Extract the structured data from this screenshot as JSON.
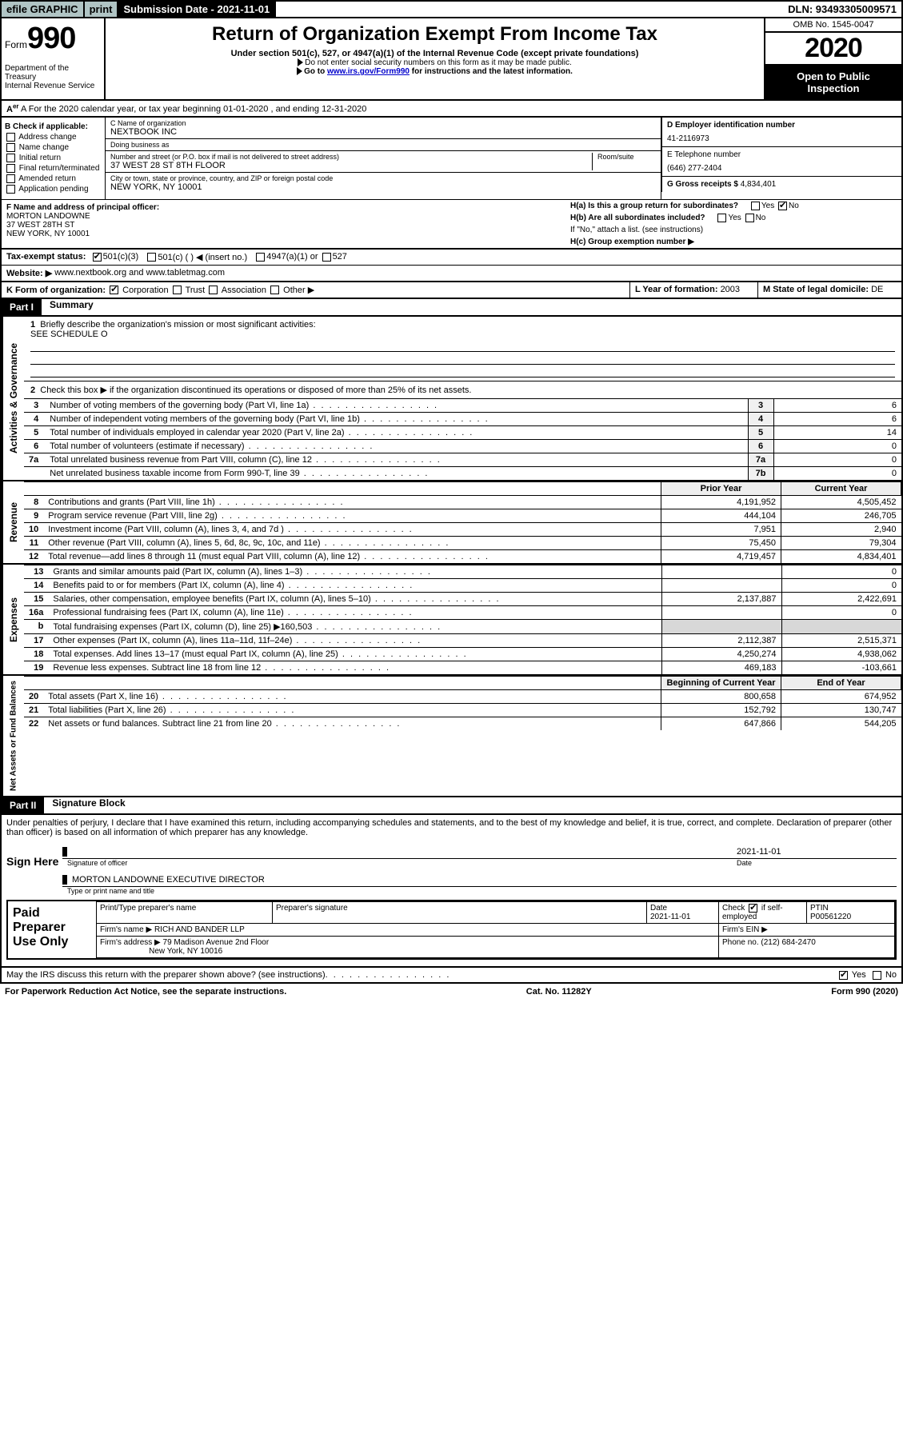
{
  "topbar": {
    "efile": "efile GRAPHIC",
    "print": "print",
    "subdate_lbl": "Submission Date - 2021-11-01",
    "dln": "DLN: 93493305009571"
  },
  "header": {
    "form_small": "Form",
    "form_big": "990",
    "dept": "Department of the Treasury",
    "irs": "Internal Revenue Service",
    "title": "Return of Organization Exempt From Income Tax",
    "sub1": "Under section 501(c), 527, or 4947(a)(1) of the Internal Revenue Code (except private foundations)",
    "sub2": "Do not enter social security numbers on this form as it may be made public.",
    "sub3_pre": "Go to ",
    "sub3_link": "www.irs.gov/Form990",
    "sub3_post": " for instructions and the latest information.",
    "omb": "OMB No. 1545-0047",
    "year": "2020",
    "open1": "Open to Public",
    "open2": "Inspection"
  },
  "rowA": {
    "text": "A For the 2020 calendar year, or tax year beginning 01-01-2020     , and ending 12-31-2020"
  },
  "chk": {
    "hdr": "B Check if applicable:",
    "c1": "Address change",
    "c2": "Name change",
    "c3": "Initial return",
    "c4": "Final return/terminated",
    "c5": "Amended return",
    "c6": "Application pending"
  },
  "org": {
    "name_lbl": "C Name of organization",
    "name": "NEXTBOOK INC",
    "dba_lbl": "Doing business as",
    "dba": "",
    "street_lbl": "Number and street (or P.O. box if mail is not delivered to street address)",
    "room_lbl": "Room/suite",
    "street": "37 WEST 28 ST 8TH FLOOR",
    "city_lbl": "City or town, state or province, country, and ZIP or foreign postal code",
    "city": "NEW YORK, NY  10001"
  },
  "right": {
    "ein_lbl": "D Employer identification number",
    "ein": "41-2116973",
    "tel_lbl": "E Telephone number",
    "tel": "(646) 277-2404",
    "gross_lbl": "G Gross receipts $ ",
    "gross": "4,834,401"
  },
  "officer": {
    "lbl": "F Name and address of principal officer:",
    "name": "MORTON LANDOWNE",
    "street": "37 WEST 28TH ST",
    "city": "NEW YORK, NY  10001",
    "ha": "H(a)  Is this a group return for subordinates?",
    "hb": "H(b)  Are all subordinates included?",
    "hb_note": "If \"No,\" attach a list. (see instructions)",
    "hc": "H(c)  Group exemption number ▶",
    "yes": "Yes",
    "no": "No"
  },
  "tax": {
    "lbl": "Tax-exempt status:",
    "c1": "501(c)(3)",
    "c2": "501(c) (   ) ◀ (insert no.)",
    "c3": "4947(a)(1) or",
    "c4": "527"
  },
  "web": {
    "lbl": "Website: ▶",
    "val": "www.nextbook.org and www.tabletmag.com"
  },
  "kline": {
    "lbl": "K Form of organization:",
    "c1": "Corporation",
    "c2": "Trust",
    "c3": "Association",
    "c4": "Other ▶",
    "l_lbl": "L Year of formation: ",
    "l_val": "2003",
    "m_lbl": "M State of legal domicile: ",
    "m_val": "DE"
  },
  "part1": {
    "hdr": "Part I",
    "title": "Summary",
    "vlabel1": "Activities & Governance",
    "vlabel2": "Revenue",
    "vlabel3": "Expenses",
    "vlabel4": "Net Assets or Fund Balances",
    "l1": "Briefly describe the organization's mission or most significant activities:",
    "l1v": "SEE SCHEDULE O",
    "l2": "Check this box ▶        if the organization discontinued its operations or disposed of more than 25% of its net assets.",
    "rows_gov": [
      {
        "n": "3",
        "d": "Number of voting members of the governing body (Part VI, line 1a)",
        "rn": "3",
        "v": "6"
      },
      {
        "n": "4",
        "d": "Number of independent voting members of the governing body (Part VI, line 1b)",
        "rn": "4",
        "v": "6"
      },
      {
        "n": "5",
        "d": "Total number of individuals employed in calendar year 2020 (Part V, line 2a)",
        "rn": "5",
        "v": "14"
      },
      {
        "n": "6",
        "d": "Total number of volunteers (estimate if necessary)",
        "rn": "6",
        "v": "0"
      },
      {
        "n": "7a",
        "d": "Total unrelated business revenue from Part VIII, column (C), line 12",
        "rn": "7a",
        "v": "0"
      },
      {
        "n": "",
        "d": "Net unrelated business taxable income from Form 990-T, line 39",
        "rn": "7b",
        "v": "0"
      }
    ],
    "hdr_py": "Prior Year",
    "hdr_cy": "Current Year",
    "rows_rev": [
      {
        "n": "8",
        "d": "Contributions and grants (Part VIII, line 1h)",
        "py": "4,191,952",
        "cy": "4,505,452"
      },
      {
        "n": "9",
        "d": "Program service revenue (Part VIII, line 2g)",
        "py": "444,104",
        "cy": "246,705"
      },
      {
        "n": "10",
        "d": "Investment income (Part VIII, column (A), lines 3, 4, and 7d )",
        "py": "7,951",
        "cy": "2,940"
      },
      {
        "n": "11",
        "d": "Other revenue (Part VIII, column (A), lines 5, 6d, 8c, 9c, 10c, and 11e)",
        "py": "75,450",
        "cy": "79,304"
      },
      {
        "n": "12",
        "d": "Total revenue—add lines 8 through 11 (must equal Part VIII, column (A), line 12)",
        "py": "4,719,457",
        "cy": "4,834,401"
      }
    ],
    "rows_exp": [
      {
        "n": "13",
        "d": "Grants and similar amounts paid (Part IX, column (A), lines 1–3)",
        "py": "",
        "cy": "0"
      },
      {
        "n": "14",
        "d": "Benefits paid to or for members (Part IX, column (A), line 4)",
        "py": "",
        "cy": "0"
      },
      {
        "n": "15",
        "d": "Salaries, other compensation, employee benefits (Part IX, column (A), lines 5–10)",
        "py": "2,137,887",
        "cy": "2,422,691"
      },
      {
        "n": "16a",
        "d": "Professional fundraising fees (Part IX, column (A), line 11e)",
        "py": "",
        "cy": "0"
      },
      {
        "n": "b",
        "d": "Total fundraising expenses (Part IX, column (D), line 25) ▶160,503",
        "py": "SHADE",
        "cy": "SHADE"
      },
      {
        "n": "17",
        "d": "Other expenses (Part IX, column (A), lines 11a–11d, 11f–24e)",
        "py": "2,112,387",
        "cy": "2,515,371"
      },
      {
        "n": "18",
        "d": "Total expenses. Add lines 13–17 (must equal Part IX, column (A), line 25)",
        "py": "4,250,274",
        "cy": "4,938,062"
      },
      {
        "n": "19",
        "d": "Revenue less expenses. Subtract line 18 from line 12",
        "py": "469,183",
        "cy": "-103,661"
      }
    ],
    "hdr_beg": "Beginning of Current Year",
    "hdr_end": "End of Year",
    "rows_net": [
      {
        "n": "20",
        "d": "Total assets (Part X, line 16)",
        "py": "800,658",
        "cy": "674,952"
      },
      {
        "n": "21",
        "d": "Total liabilities (Part X, line 26)",
        "py": "152,792",
        "cy": "130,747"
      },
      {
        "n": "22",
        "d": "Net assets or fund balances. Subtract line 21 from line 20",
        "py": "647,866",
        "cy": "544,205"
      }
    ]
  },
  "part2": {
    "hdr": "Part II",
    "title": "Signature Block",
    "decl": "Under penalties of perjury, I declare that I have examined this return, including accompanying schedules and statements, and to the best of my knowledge and belief, it is true, correct, and complete. Declaration of preparer (other than officer) is based on all information of which preparer has any knowledge.",
    "sign": "Sign Here",
    "sigoff": "Signature of officer",
    "sigdate": "2021-11-01",
    "datel": "Date",
    "signame": "MORTON LANDOWNE  EXECUTIVE DIRECTOR",
    "signame_lbl": "Type or print name and title"
  },
  "prep": {
    "lbl": "Paid Preparer Use Only",
    "h1": "Print/Type preparer's name",
    "h2": "Preparer's signature",
    "h3": "Date",
    "h3v": "2021-11-01",
    "h4": "Check         if self-employed",
    "h5": "PTIN",
    "h5v": "P00561220",
    "firm_lbl": "Firm's name    ▶",
    "firm": "RICH AND BANDER LLP",
    "ein_lbl": "Firm's EIN ▶",
    "addr_lbl": "Firm's address ▶",
    "addr1": "79 Madison Avenue 2nd Floor",
    "addr2": "New York, NY  10016",
    "phone_lbl": "Phone no. ",
    "phone": "(212) 684-2470"
  },
  "foot": {
    "q": "May the IRS discuss this return with the preparer shown above? (see instructions)",
    "yes": "Yes",
    "no": "No"
  },
  "last": {
    "l": "For Paperwork Reduction Act Notice, see the separate instructions.",
    "c": "Cat. No. 11282Y",
    "r": "Form 990 (2020)"
  }
}
